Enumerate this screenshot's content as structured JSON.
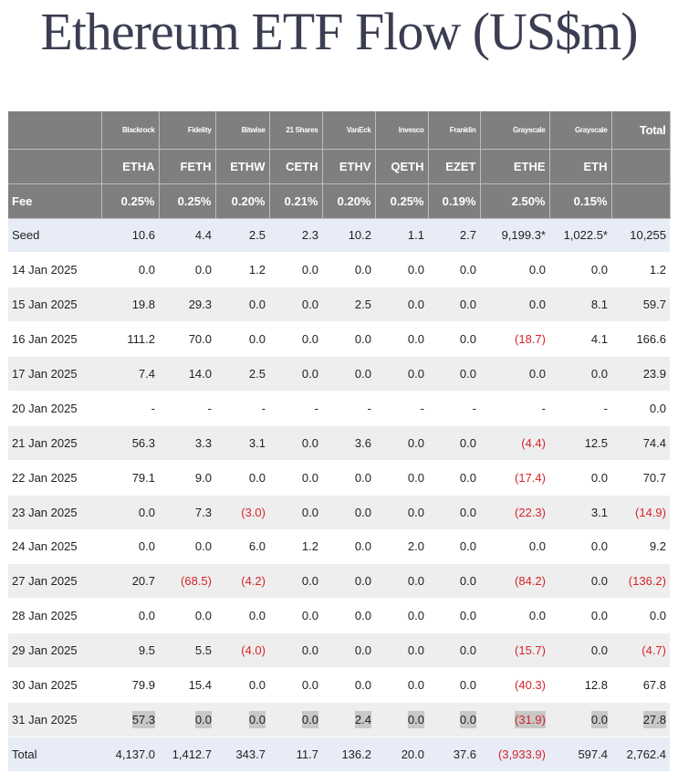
{
  "title": "Ethereum ETF Flow (US$m)",
  "colors": {
    "header_bg": "#7f7f7f",
    "negative": "#d6242a",
    "seed_total_bg": "#e7ecf6",
    "stripe_bg": "#eeeeee",
    "title": "#3b3e52"
  },
  "issuers": [
    "Blackrock",
    "Fidelity",
    "Bitwise",
    "21 Shares",
    "VanEck",
    "Invesco",
    "Franklin",
    "Grayscale",
    "Grayscale"
  ],
  "total_header": "Total",
  "tickers": [
    "ETHA",
    "FETH",
    "ETHW",
    "CETH",
    "ETHV",
    "QETH",
    "EZET",
    "ETHE",
    "ETH"
  ],
  "fee_label": "Fee",
  "fees": [
    "0.25%",
    "0.25%",
    "0.20%",
    "0.21%",
    "0.20%",
    "0.25%",
    "0.19%",
    "2.50%",
    "0.15%"
  ],
  "rows": [
    {
      "label": "Seed",
      "values": [
        "10.6",
        "4.4",
        "2.5",
        "2.3",
        "10.2",
        "1.1",
        "2.7",
        "9,199.3*",
        "1,022.5*"
      ],
      "total": "10,255"
    },
    {
      "label": "14 Jan 2025",
      "values": [
        "0.0",
        "0.0",
        "1.2",
        "0.0",
        "0.0",
        "0.0",
        "0.0",
        "0.0",
        "0.0"
      ],
      "total": "1.2"
    },
    {
      "label": "15 Jan 2025",
      "values": [
        "19.8",
        "29.3",
        "0.0",
        "0.0",
        "2.5",
        "0.0",
        "0.0",
        "0.0",
        "8.1"
      ],
      "total": "59.7"
    },
    {
      "label": "16 Jan 2025",
      "values": [
        "111.2",
        "70.0",
        "0.0",
        "0.0",
        "0.0",
        "0.0",
        "0.0",
        "(18.7)",
        "4.1"
      ],
      "total": "166.6"
    },
    {
      "label": "17 Jan 2025",
      "values": [
        "7.4",
        "14.0",
        "2.5",
        "0.0",
        "0.0",
        "0.0",
        "0.0",
        "0.0",
        "0.0"
      ],
      "total": "23.9"
    },
    {
      "label": "20 Jan 2025",
      "values": [
        "-",
        "-",
        "-",
        "-",
        "-",
        "-",
        "-",
        "-",
        "-"
      ],
      "total": "0.0"
    },
    {
      "label": "21 Jan 2025",
      "values": [
        "56.3",
        "3.3",
        "3.1",
        "0.0",
        "3.6",
        "0.0",
        "0.0",
        "(4.4)",
        "12.5"
      ],
      "total": "74.4"
    },
    {
      "label": "22 Jan 2025",
      "values": [
        "79.1",
        "9.0",
        "0.0",
        "0.0",
        "0.0",
        "0.0",
        "0.0",
        "(17.4)",
        "0.0"
      ],
      "total": "70.7"
    },
    {
      "label": "23 Jan 2025",
      "values": [
        "0.0",
        "7.3",
        "(3.0)",
        "0.0",
        "0.0",
        "0.0",
        "0.0",
        "(22.3)",
        "3.1"
      ],
      "total": "(14.9)"
    },
    {
      "label": "24 Jan 2025",
      "values": [
        "0.0",
        "0.0",
        "6.0",
        "1.2",
        "0.0",
        "2.0",
        "0.0",
        "0.0",
        "0.0"
      ],
      "total": "9.2"
    },
    {
      "label": "27 Jan 2025",
      "values": [
        "20.7",
        "(68.5)",
        "(4.2)",
        "0.0",
        "0.0",
        "0.0",
        "0.0",
        "(84.2)",
        "0.0"
      ],
      "total": "(136.2)"
    },
    {
      "label": "28 Jan 2025",
      "values": [
        "0.0",
        "0.0",
        "0.0",
        "0.0",
        "0.0",
        "0.0",
        "0.0",
        "0.0",
        "0.0"
      ],
      "total": "0.0"
    },
    {
      "label": "29 Jan 2025",
      "values": [
        "9.5",
        "5.5",
        "(4.0)",
        "0.0",
        "0.0",
        "0.0",
        "0.0",
        "(15.7)",
        "0.0"
      ],
      "total": "(4.7)"
    },
    {
      "label": "30 Jan 2025",
      "values": [
        "79.9",
        "15.4",
        "0.0",
        "0.0",
        "0.0",
        "0.0",
        "0.0",
        "(40.3)",
        "12.8"
      ],
      "total": "67.8"
    },
    {
      "label": "31 Jan 2025",
      "values": [
        "57.3",
        "0.0",
        "0.0",
        "0.0",
        "2.4",
        "0.0",
        "0.0",
        "(31.9)",
        "0.0"
      ],
      "total": "27.8",
      "highlighted": true
    },
    {
      "label": "Total",
      "values": [
        "4,137.0",
        "1,412.7",
        "343.7",
        "11.7",
        "136.2",
        "20.0",
        "37.6",
        "(3,933.9)",
        "597.4"
      ],
      "total": "2,762.4"
    }
  ]
}
